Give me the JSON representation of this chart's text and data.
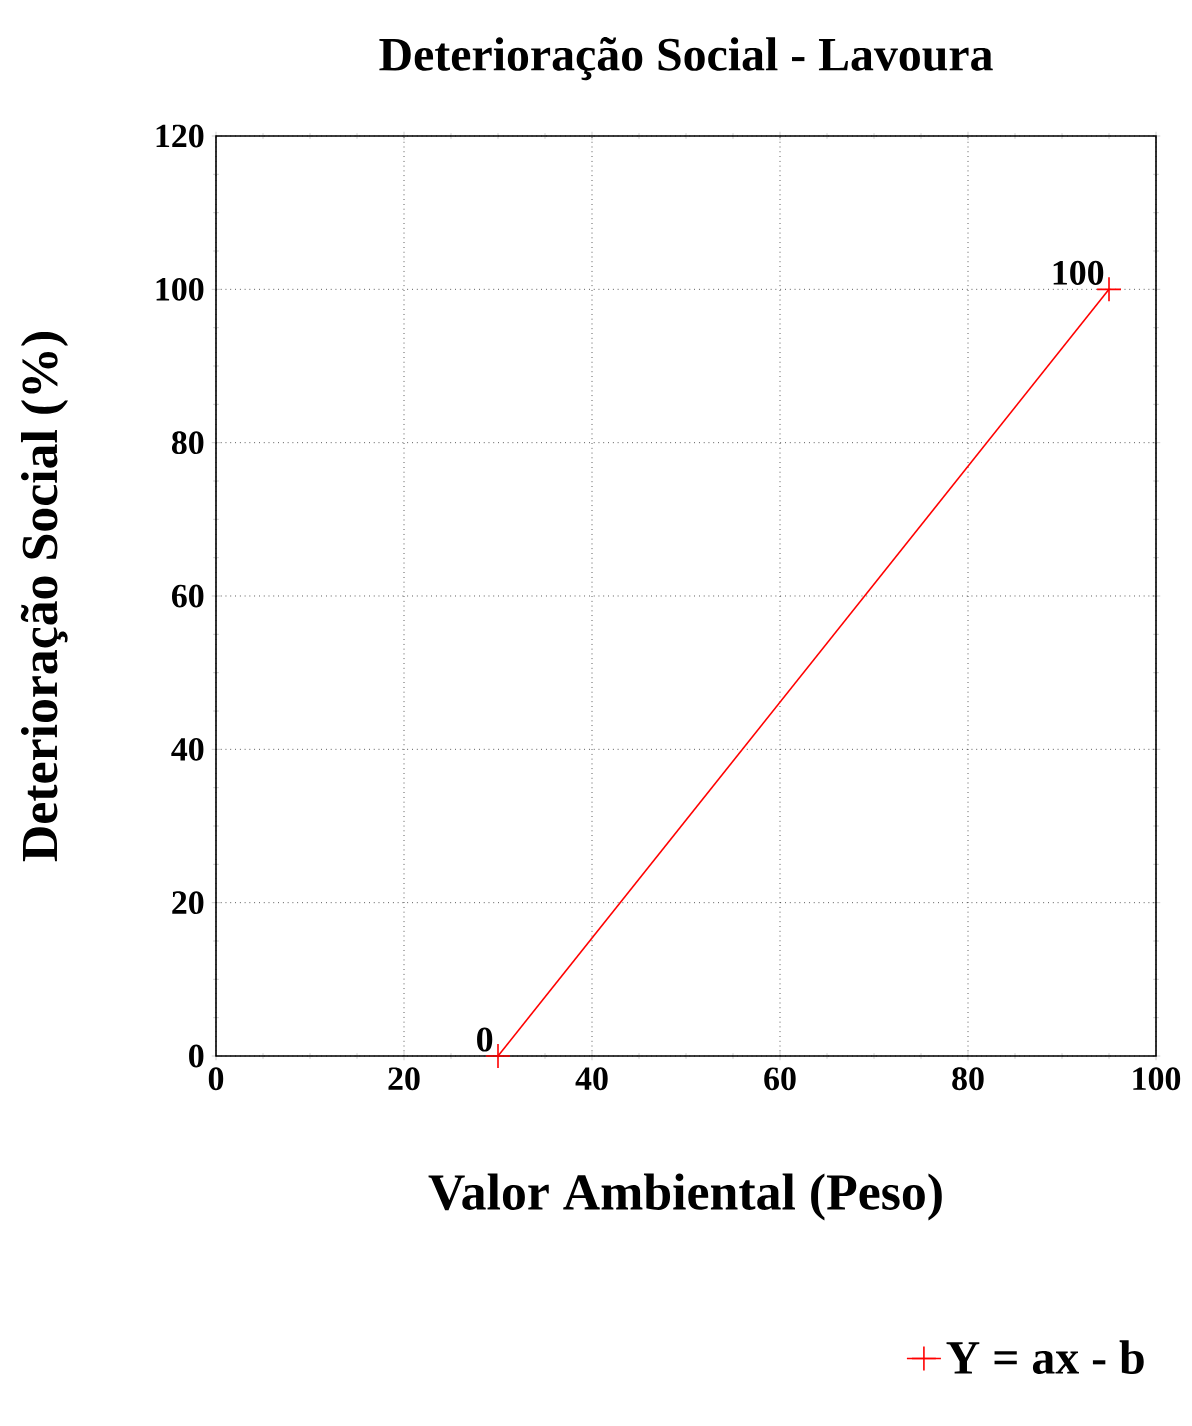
{
  "chart_data": {
    "type": "line",
    "title": "Deterioração Social - Lavoura",
    "xlabel": "Valor Ambiental (Peso)",
    "ylabel": "Deterioração Social (%)",
    "series": [
      {
        "name": "Y = ax - b",
        "color": "#ff0000",
        "x": [
          30,
          95
        ],
        "values": [
          0,
          100
        ],
        "value_labels": [
          "0",
          "100"
        ]
      }
    ],
    "xlim": [
      0,
      100
    ],
    "ylim": [
      0,
      120
    ],
    "xticks": [
      0,
      20,
      40,
      60,
      80,
      100
    ],
    "yticks": [
      0,
      20,
      40,
      60,
      80,
      100,
      120
    ],
    "grid": true,
    "legend": "bottom right",
    "marker": "cross",
    "line_style": "solid"
  }
}
